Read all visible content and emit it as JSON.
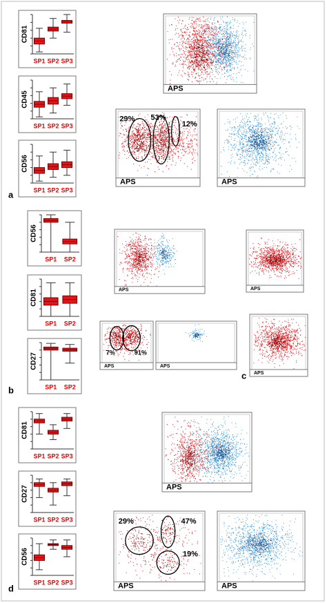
{
  "panels": [
    {
      "label": "a",
      "boxplots": [
        {
          "axis_label": "CD81",
          "categories": [
            "SP1",
            "SP2",
            "SP3"
          ]
        },
        {
          "axis_label": "CD45",
          "categories": [
            "SP1",
            "SP2",
            "SP3"
          ]
        },
        {
          "axis_label": "CD56",
          "categories": [
            "SP1",
            "SP2",
            "SP3"
          ]
        }
      ],
      "scatters": [
        {
          "x_label": "APS"
        },
        {
          "x_label": "APS",
          "gates": [
            "29%",
            "53%",
            "12%"
          ]
        },
        {
          "x_label": "APS"
        }
      ]
    },
    {
      "label": "b",
      "boxplots": [
        {
          "axis_label": "CD56",
          "categories": [
            "SP1",
            "SP2"
          ]
        },
        {
          "axis_label": "CD81",
          "categories": [
            "SP1",
            "SP2"
          ]
        },
        {
          "axis_label": "CD27",
          "categories": [
            "SP1",
            "SP2"
          ]
        }
      ],
      "scatters": [
        {
          "x_label": "APS"
        },
        {
          "x_label": "APS",
          "gates": [
            "7%",
            "91%"
          ]
        },
        {
          "x_label": "APS"
        }
      ]
    },
    {
      "label": "c",
      "scatters": [
        {
          "x_label": "APS"
        },
        {
          "x_label": "APS"
        }
      ]
    },
    {
      "label": "d",
      "boxplots": [
        {
          "axis_label": "CD81",
          "categories": [
            "SP1",
            "SP2",
            "SP3"
          ]
        },
        {
          "axis_label": "CD27",
          "categories": [
            "SP1",
            "SP2",
            "SP3"
          ]
        },
        {
          "axis_label": "CD56",
          "categories": [
            "SP1",
            "SP2",
            "SP3"
          ]
        }
      ],
      "scatters": [
        {
          "x_label": "APS"
        },
        {
          "x_label": "APS",
          "gates": [
            "29%",
            "47%",
            "19%"
          ]
        },
        {
          "x_label": "APS"
        }
      ]
    }
  ]
}
